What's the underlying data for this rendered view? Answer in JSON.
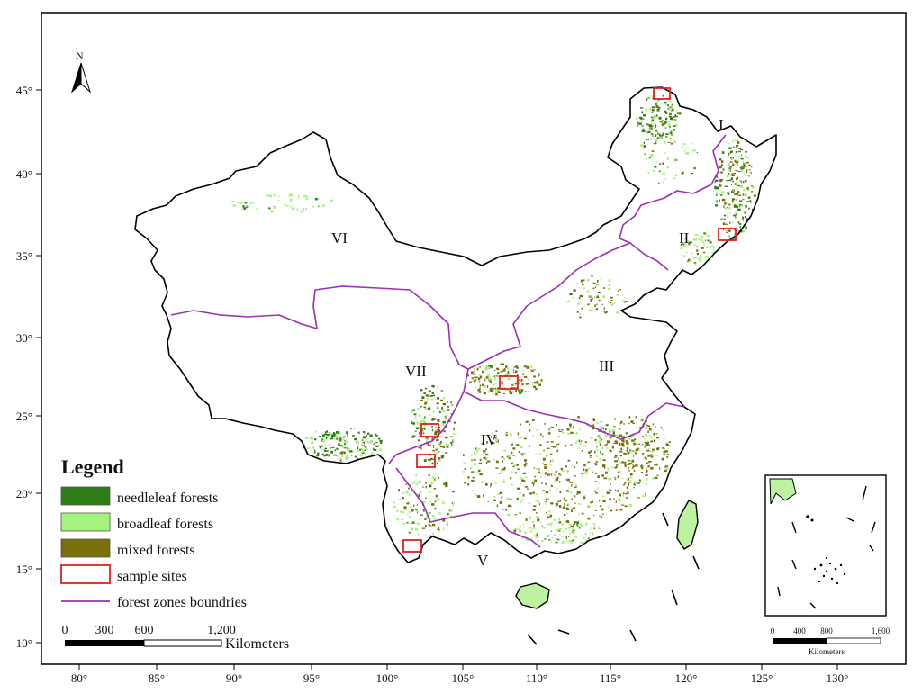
{
  "north_arrow": {
    "label": "N"
  },
  "axes": {
    "y_ticks": [
      "45°",
      "40°",
      "35°",
      "30°",
      "25°",
      "20°",
      "15°",
      "10°"
    ],
    "x_ticks": [
      "80°",
      "85°",
      "90°",
      "95°",
      "100°",
      "105°",
      "110°",
      "115°",
      "120°",
      "125°",
      "130°"
    ]
  },
  "zones": [
    "I",
    "II",
    "III",
    "IV",
    "V",
    "VI",
    "VII"
  ],
  "legend": {
    "title": "Legend",
    "items": [
      {
        "label": "needleleaf forests",
        "color": "#2e7d16"
      },
      {
        "label": "broadleaf forests",
        "color": "#a3f37d"
      },
      {
        "label": "mixed forests",
        "color": "#7a6f0a"
      },
      {
        "label": "sample sites",
        "color": "#e0221f"
      },
      {
        "label": "forest zones boundries",
        "color": "#9a2fb8"
      }
    ]
  },
  "scalebar": {
    "ticks": [
      "0",
      "300",
      "600",
      "1,200"
    ],
    "unit": "Kilometers"
  },
  "inset_scalebar": {
    "ticks": [
      "0",
      "400",
      "800",
      "1,600"
    ],
    "unit": "Kilometers"
  }
}
